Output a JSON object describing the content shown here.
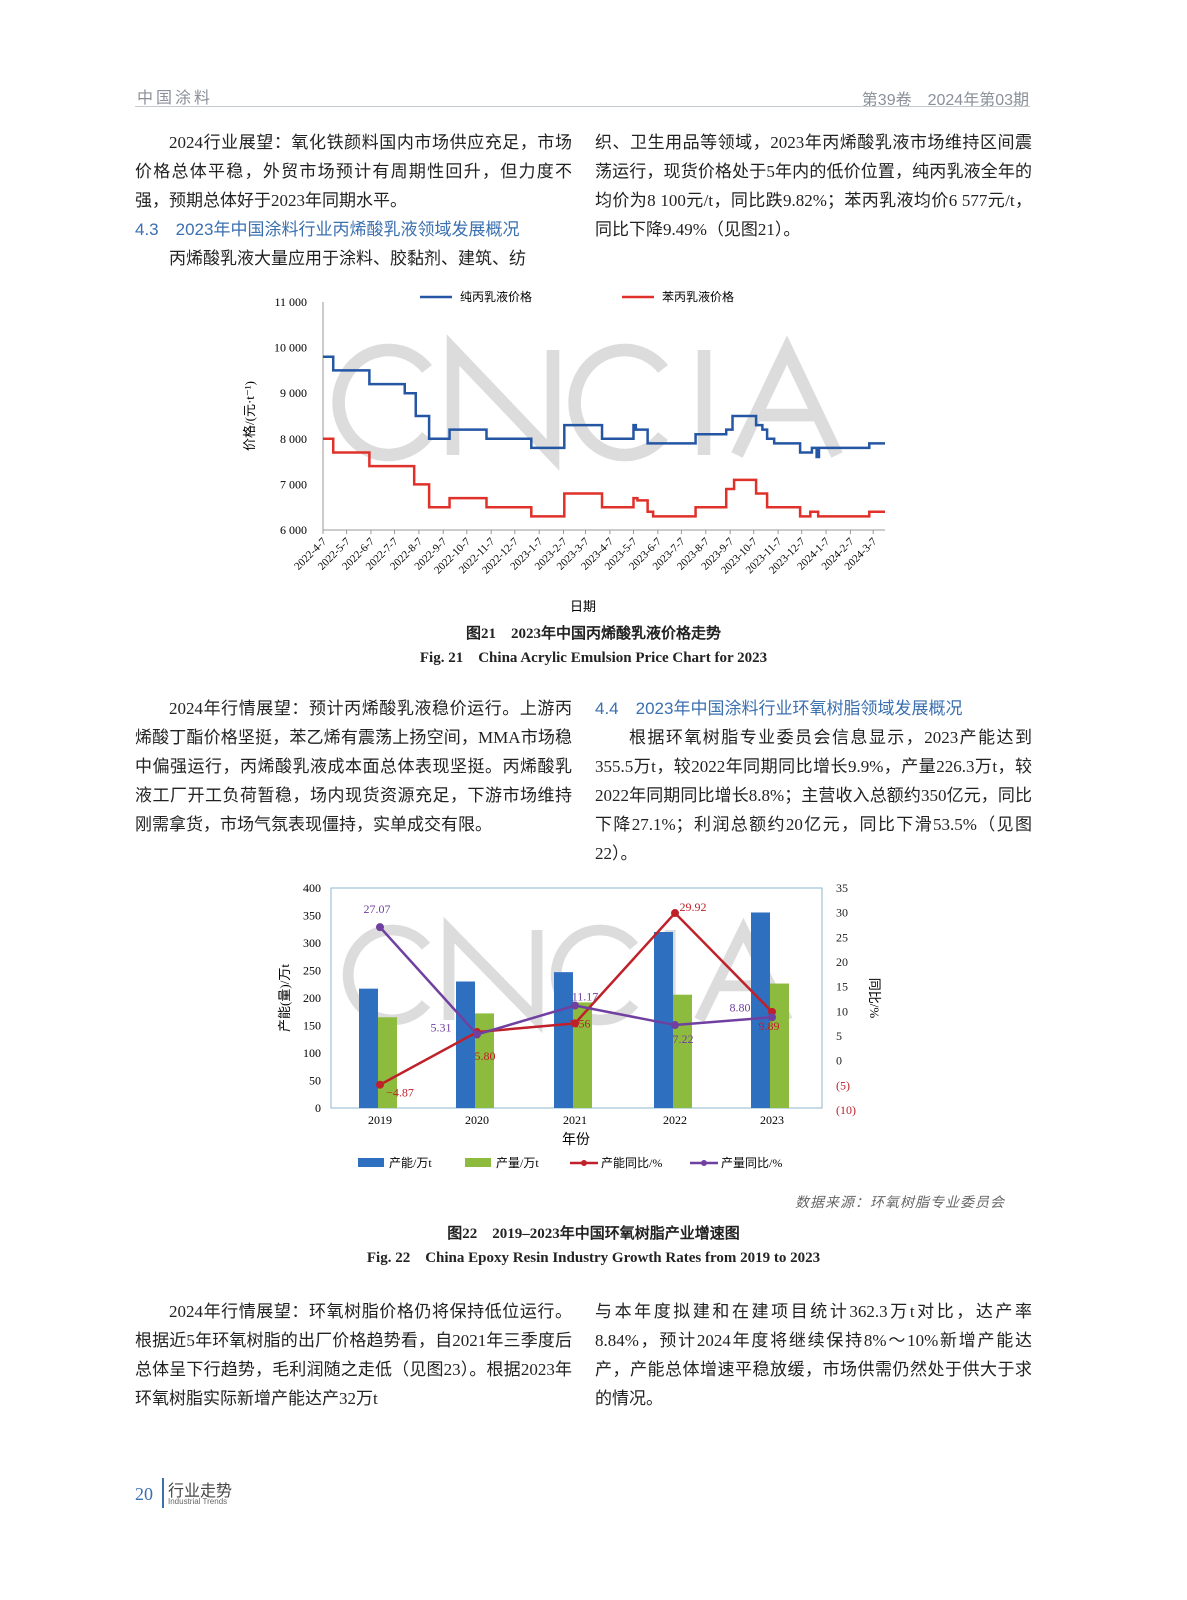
{
  "header": {
    "journal": "中国涂料",
    "issue": "第39卷　2024年第03期"
  },
  "left_col_top": {
    "p1": "2024行业展望：氧化铁颜料国内市场供应充足，市场价格总体平稳，外贸市场预计有周期性回升，但力度不强，预期总体好于2023年同期水平。",
    "h": "4.3　2023年中国涂料行业丙烯酸乳液领域发展概况",
    "p2": "丙烯酸乳液大量应用于涂料、胶黏剂、建筑、纺"
  },
  "right_col_top": {
    "p1": "织、卫生用品等领域，2023年丙烯酸乳液市场维持区间震荡运行，现货价格处于5年内的低价位置，纯丙乳液全年的均价为8 100元/t，同比跌9.82%；苯丙乳液均价6 577元/t，同比下降9.49%（见图21）。"
  },
  "fig21": {
    "caption_cn": "图21　2023年中国丙烯酸乳液价格走势",
    "caption_en": "Fig. 21　China Acrylic Emulsion Price Chart for 2023"
  },
  "left_col_mid": {
    "p1": "2024年行情展望：预计丙烯酸乳液稳价运行。上游丙烯酸丁酯价格坚挺，苯乙烯有震荡上扬空间，MMA市场稳中偏强运行，丙烯酸乳液成本面总体表现坚挺。丙烯酸乳液工厂开工负荷暂稳，场内现货资源充足，下游市场维持刚需拿货，市场气氛表现僵持，实单成交有限。"
  },
  "right_col_mid": {
    "h": "4.4　2023年中国涂料行业环氧树脂领域发展概况",
    "p1": "根据环氧树脂专业委员会信息显示，2023产能达到355.5万t，较2022年同期同比增长9.9%，产量226.3万t，较2022年同期同比增长8.8%；主营收入总额约350亿元，同比下降27.1%；利润总额约20亿元，同比下滑53.5%（见图22）。"
  },
  "fig22": {
    "source": "数据来源：环氧树脂专业委员会",
    "caption_cn": "图22　2019–2023年中国环氧树脂产业增速图",
    "caption_en": "Fig. 22　China Epoxy Resin Industry Growth Rates from 2019 to 2023"
  },
  "left_col_bot": {
    "p1": "2024年行情展望：环氧树脂价格仍将保持低位运行。根据近5年环氧树脂的出厂价格趋势看，自2021年三季度后总体呈下行趋势，毛利润随之走低（见图23）。根据2023年环氧树脂实际新增产能达产32万t"
  },
  "right_col_bot": {
    "p1": "与本年度拟建和在建项目统计362.3万t对比，达产率8.84%，预计2024年度将继续保持8%～10%新增产能达产，产能总体增速平稳放缓，市场供需仍然处于供大于求的情况。"
  },
  "footer": {
    "page": "20",
    "section": "行业走势",
    "section_en": "Industrial Trends"
  },
  "watermark": "CNCIA",
  "chart_data": [
    {
      "type": "line",
      "title": "",
      "xlabel": "日期",
      "ylabel": "价格/(元·t⁻¹)",
      "ylim": [
        6000,
        11000
      ],
      "yticks": [
        "6 000",
        "7 000",
        "8 000",
        "9 000",
        "10 000",
        "11 000"
      ],
      "xticks": [
        "2022-4-7",
        "2022-5-7",
        "2022-6-7",
        "2022-7-7",
        "2022-8-7",
        "2022-9-7",
        "2022-10-7",
        "2022-11-7",
        "2022-12-7",
        "2023-1-7",
        "2023-2-7",
        "2023-3-7",
        "2023-4-7",
        "2023-5-7",
        "2023-6-7",
        "2023-7-7",
        "2023-8-7",
        "2023-9-7",
        "2023-10-7",
        "2023-11-7",
        "2023-12-7",
        "2024-1-7",
        "2024-2-7",
        "2024-3-7"
      ],
      "legend_position": "top",
      "step": true,
      "series": [
        {
          "name": "纯丙乳液价格",
          "color": "#2456a4",
          "points": [
            [
              "2022-04-07",
              9800
            ],
            [
              "2022-04-20",
              9500
            ],
            [
              "2022-06-05",
              9200
            ],
            [
              "2022-07-20",
              9000
            ],
            [
              "2022-08-03",
              8500
            ],
            [
              "2022-08-20",
              8000
            ],
            [
              "2022-09-15",
              8200
            ],
            [
              "2022-11-01",
              8000
            ],
            [
              "2022-12-28",
              7800
            ],
            [
              "2023-02-08",
              8300
            ],
            [
              "2023-03-28",
              8000
            ],
            [
              "2023-05-07",
              8300
            ],
            [
              "2023-05-10",
              8200
            ],
            [
              "2023-05-25",
              7900
            ],
            [
              "2023-07-25",
              8100
            ],
            [
              "2023-09-02",
              8200
            ],
            [
              "2023-09-10",
              8500
            ],
            [
              "2023-10-10",
              8300
            ],
            [
              "2023-10-18",
              8200
            ],
            [
              "2023-10-24",
              8000
            ],
            [
              "2023-11-02",
              7900
            ],
            [
              "2023-12-05",
              7700
            ],
            [
              "2023-12-20",
              7800
            ],
            [
              "2023-12-26",
              7600
            ],
            [
              "2023-12-29",
              7800
            ],
            [
              "2024-03-02",
              7900
            ],
            [
              "2024-03-22",
              7900
            ]
          ]
        },
        {
          "name": "苯丙乳液价格",
          "color": "#e0302a",
          "points": [
            [
              "2022-04-07",
              8000
            ],
            [
              "2022-04-20",
              7700
            ],
            [
              "2022-06-05",
              7400
            ],
            [
              "2022-08-01",
              7000
            ],
            [
              "2022-08-20",
              6500
            ],
            [
              "2022-09-15",
              6700
            ],
            [
              "2022-11-01",
              6500
            ],
            [
              "2022-12-28",
              6300
            ],
            [
              "2023-02-08",
              6800
            ],
            [
              "2023-03-28",
              6500
            ],
            [
              "2023-05-07",
              6700
            ],
            [
              "2023-05-12",
              6650
            ],
            [
              "2023-05-25",
              6400
            ],
            [
              "2023-06-01",
              6300
            ],
            [
              "2023-07-25",
              6500
            ],
            [
              "2023-09-02",
              6900
            ],
            [
              "2023-09-12",
              7100
            ],
            [
              "2023-10-10",
              6800
            ],
            [
              "2023-10-24",
              6500
            ],
            [
              "2023-12-05",
              6300
            ],
            [
              "2023-12-18",
              6400
            ],
            [
              "2023-12-28",
              6300
            ],
            [
              "2024-03-02",
              6400
            ],
            [
              "2024-03-22",
              6400
            ]
          ]
        }
      ]
    },
    {
      "type": "bar+line",
      "title": "",
      "xlabel": "年份",
      "ylabel": "产能(量)/万t",
      "y2label": "同比/%",
      "categories": [
        "2019",
        "2020",
        "2021",
        "2022",
        "2023"
      ],
      "ylim": [
        0,
        400
      ],
      "yticks": [
        "0",
        "50",
        "100",
        "150",
        "200",
        "250",
        "300",
        "350",
        "400"
      ],
      "y2lim": [
        -10,
        35
      ],
      "y2ticks": [
        "(10)",
        "(5)",
        "0",
        "5",
        "10",
        "15",
        "20",
        "25",
        "30",
        "35"
      ],
      "legend_position": "bottom",
      "series": [
        {
          "name": "产能/万t",
          "type": "bar",
          "color": "#2f6fc0",
          "axis": "left",
          "values": [
            217,
            230,
            247,
            320,
            355.5
          ]
        },
        {
          "name": "产量/万t",
          "type": "bar",
          "color": "#8dbb3e",
          "axis": "left",
          "values": [
            165,
            172,
            192,
            206,
            226.3
          ]
        },
        {
          "name": "产能同比/%",
          "type": "line",
          "color": "#c0202a",
          "axis": "right",
          "values": [
            -4.87,
            5.8,
            7.56,
            29.92,
            9.89
          ],
          "labels": [
            "−4.87",
            "5.80",
            "7.56",
            "29.92",
            "9.89"
          ]
        },
        {
          "name": "产量同比/%",
          "type": "line",
          "color": "#7040a0",
          "axis": "right",
          "values": [
            27.07,
            5.31,
            11.17,
            7.22,
            8.8
          ],
          "labels": [
            "27.07",
            "5.31",
            "11.17",
            "7.22",
            "8.80"
          ]
        }
      ]
    }
  ]
}
